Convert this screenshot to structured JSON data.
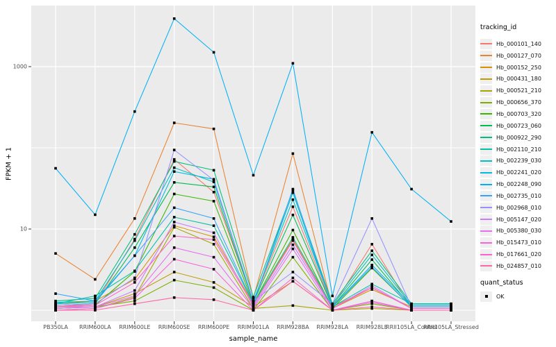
{
  "figure": {
    "background": "#FFFFFF",
    "panel_background": "#EBEBEB",
    "gridline_color": "#FFFFFF",
    "axis_text_color": "#4D4D4D",
    "tick_color": "#333333",
    "point_color": "#000000"
  },
  "chart_data": {
    "type": "line",
    "title": "",
    "xlabel": "sample_name",
    "ylabel": "FPKM + 1",
    "y_scale": "log10",
    "ylim": [
      0.72,
      5400
    ],
    "grid": "major-white-on-gray",
    "y_ticks": [
      {
        "label": "10",
        "value": 10
      },
      {
        "label": "1000",
        "value": 1000
      }
    ],
    "y_gridlines": [
      1,
      10,
      100,
      1000
    ],
    "categories": [
      "PB350LA",
      "RRIM600LA",
      "RRIM600LE",
      "RRIM600SE",
      "RRIM600PE",
      "RRIM901LA",
      "RRIM928BA",
      "RRIM928LA",
      "RRIM928LE",
      "RRII105LA_Control",
      "RRII105LA_Stressed"
    ],
    "legend": {
      "title": "tracking_id",
      "position": "right"
    },
    "legend2": {
      "title": "quant_status",
      "items": [
        {
          "label": "OK",
          "marker": "black-point"
        }
      ]
    },
    "series": [
      {
        "name": "Hb_000101_140",
        "color": "#F8766D",
        "values": [
          1.1,
          1.2,
          7.5,
          72,
          28.5,
          1.3,
          18.8,
          1.1,
          6.5,
          1.05,
          1.05
        ]
      },
      {
        "name": "Hb_000127_070",
        "color": "#EA8331",
        "values": [
          5.0,
          2.4,
          13.5,
          203,
          171,
          1.4,
          85,
          1.1,
          1.9,
          1.05,
          1.05
        ]
      },
      {
        "name": "Hb_000152_250",
        "color": "#D89000",
        "values": [
          1.2,
          1.3,
          2.4,
          11,
          8.0,
          1.2,
          7.5,
          1.05,
          1.8,
          1.1,
          1.1
        ]
      },
      {
        "name": "Hb_000431_180",
        "color": "#C09B00",
        "values": [
          1.05,
          1.1,
          1.6,
          2.95,
          2.2,
          1.1,
          2.27,
          1.0,
          1.3,
          1.0,
          1.0
        ]
      },
      {
        "name": "Hb_000521_210",
        "color": "#A3A500",
        "values": [
          1.0,
          1.05,
          1.45,
          10.5,
          6.5,
          1.05,
          1.14,
          1.0,
          1.05,
          1.0,
          1.0
        ]
      },
      {
        "name": "Hb_000656_370",
        "color": "#7CAE00",
        "values": [
          1.05,
          1.1,
          1.3,
          2.35,
          1.9,
          1.0,
          4.5,
          1.0,
          1.2,
          1.0,
          1.0
        ]
      },
      {
        "name": "Hb_000703_320",
        "color": "#39B600",
        "values": [
          1.1,
          1.15,
          3.0,
          27,
          22,
          1.2,
          9.7,
          1.05,
          3.3,
          1.1,
          1.1
        ]
      },
      {
        "name": "Hb_000723_060",
        "color": "#00BB4E",
        "values": [
          1.15,
          1.2,
          5.9,
          37.5,
          33,
          1.25,
          14.9,
          1.1,
          4.2,
          1.1,
          1.1
        ]
      },
      {
        "name": "Hb_000922_290",
        "color": "#00BF7D",
        "values": [
          1.3,
          1.4,
          8.6,
          68,
          53,
          1.45,
          30,
          1.2,
          5.4,
          1.2,
          1.2
        ]
      },
      {
        "name": "Hb_002110_210",
        "color": "#00C1A3",
        "values": [
          1.2,
          1.5,
          3.05,
          14,
          11,
          1.2,
          7.9,
          1.1,
          2.1,
          1.2,
          1.2
        ]
      },
      {
        "name": "Hb_002239_030",
        "color": "#00BFC4",
        "values": [
          1.25,
          1.3,
          7.2,
          57,
          38,
          1.3,
          23,
          1.15,
          4.8,
          1.15,
          1.15
        ]
      },
      {
        "name": "Hb_002241_020",
        "color": "#00BAE0",
        "values": [
          1.2,
          1.25,
          4.7,
          51,
          41,
          1.25,
          28,
          1.1,
          3.6,
          1.15,
          1.15
        ]
      },
      {
        "name": "Hb_002248_090",
        "color": "#00B0F6",
        "values": [
          56,
          15,
          280,
          3900,
          1500,
          46,
          1100,
          1.5,
          155,
          31,
          12.4
        ]
      },
      {
        "name": "Hb_002735_010",
        "color": "#35A2FF",
        "values": [
          1.6,
          1.3,
          4.7,
          18.3,
          13.5,
          1.2,
          31,
          1.1,
          3.4,
          1.1,
          1.1
        ]
      },
      {
        "name": "Hb_002968_010",
        "color": "#9590FF",
        "values": [
          1.15,
          1.2,
          2.5,
          94,
          40,
          1.3,
          2.95,
          1.2,
          13.5,
          1.1,
          1.1
        ]
      },
      {
        "name": "Hb_005147_020",
        "color": "#C77CFF",
        "values": [
          1.05,
          1.1,
          1.75,
          12.2,
          9.0,
          1.1,
          6.4,
          1.05,
          2.0,
          1.05,
          1.05
        ]
      },
      {
        "name": "Hb_005380_030",
        "color": "#E76BF3",
        "values": [
          1.1,
          1.1,
          1.5,
          5.9,
          4.5,
          1.05,
          5.7,
          1.0,
          1.3,
          1.0,
          1.0
        ]
      },
      {
        "name": "Hb_015473_010",
        "color": "#FA62DB",
        "values": [
          1.0,
          1.05,
          1.4,
          4.25,
          3.2,
          1.0,
          2.5,
          1.0,
          1.25,
          1.0,
          1.0
        ]
      },
      {
        "name": "Hb_017661_020",
        "color": "#FF61CC",
        "values": [
          1.1,
          1.15,
          2.2,
          8.2,
          7.4,
          1.15,
          7.2,
          1.05,
          1.9,
          1.05,
          1.05
        ]
      },
      {
        "name": "Hb_024857_010",
        "color": "#FF67A4",
        "values": [
          1.0,
          1.0,
          1.2,
          1.43,
          1.35,
          1.0,
          2.27,
          1.0,
          1.1,
          1.0,
          1.0
        ]
      }
    ]
  }
}
